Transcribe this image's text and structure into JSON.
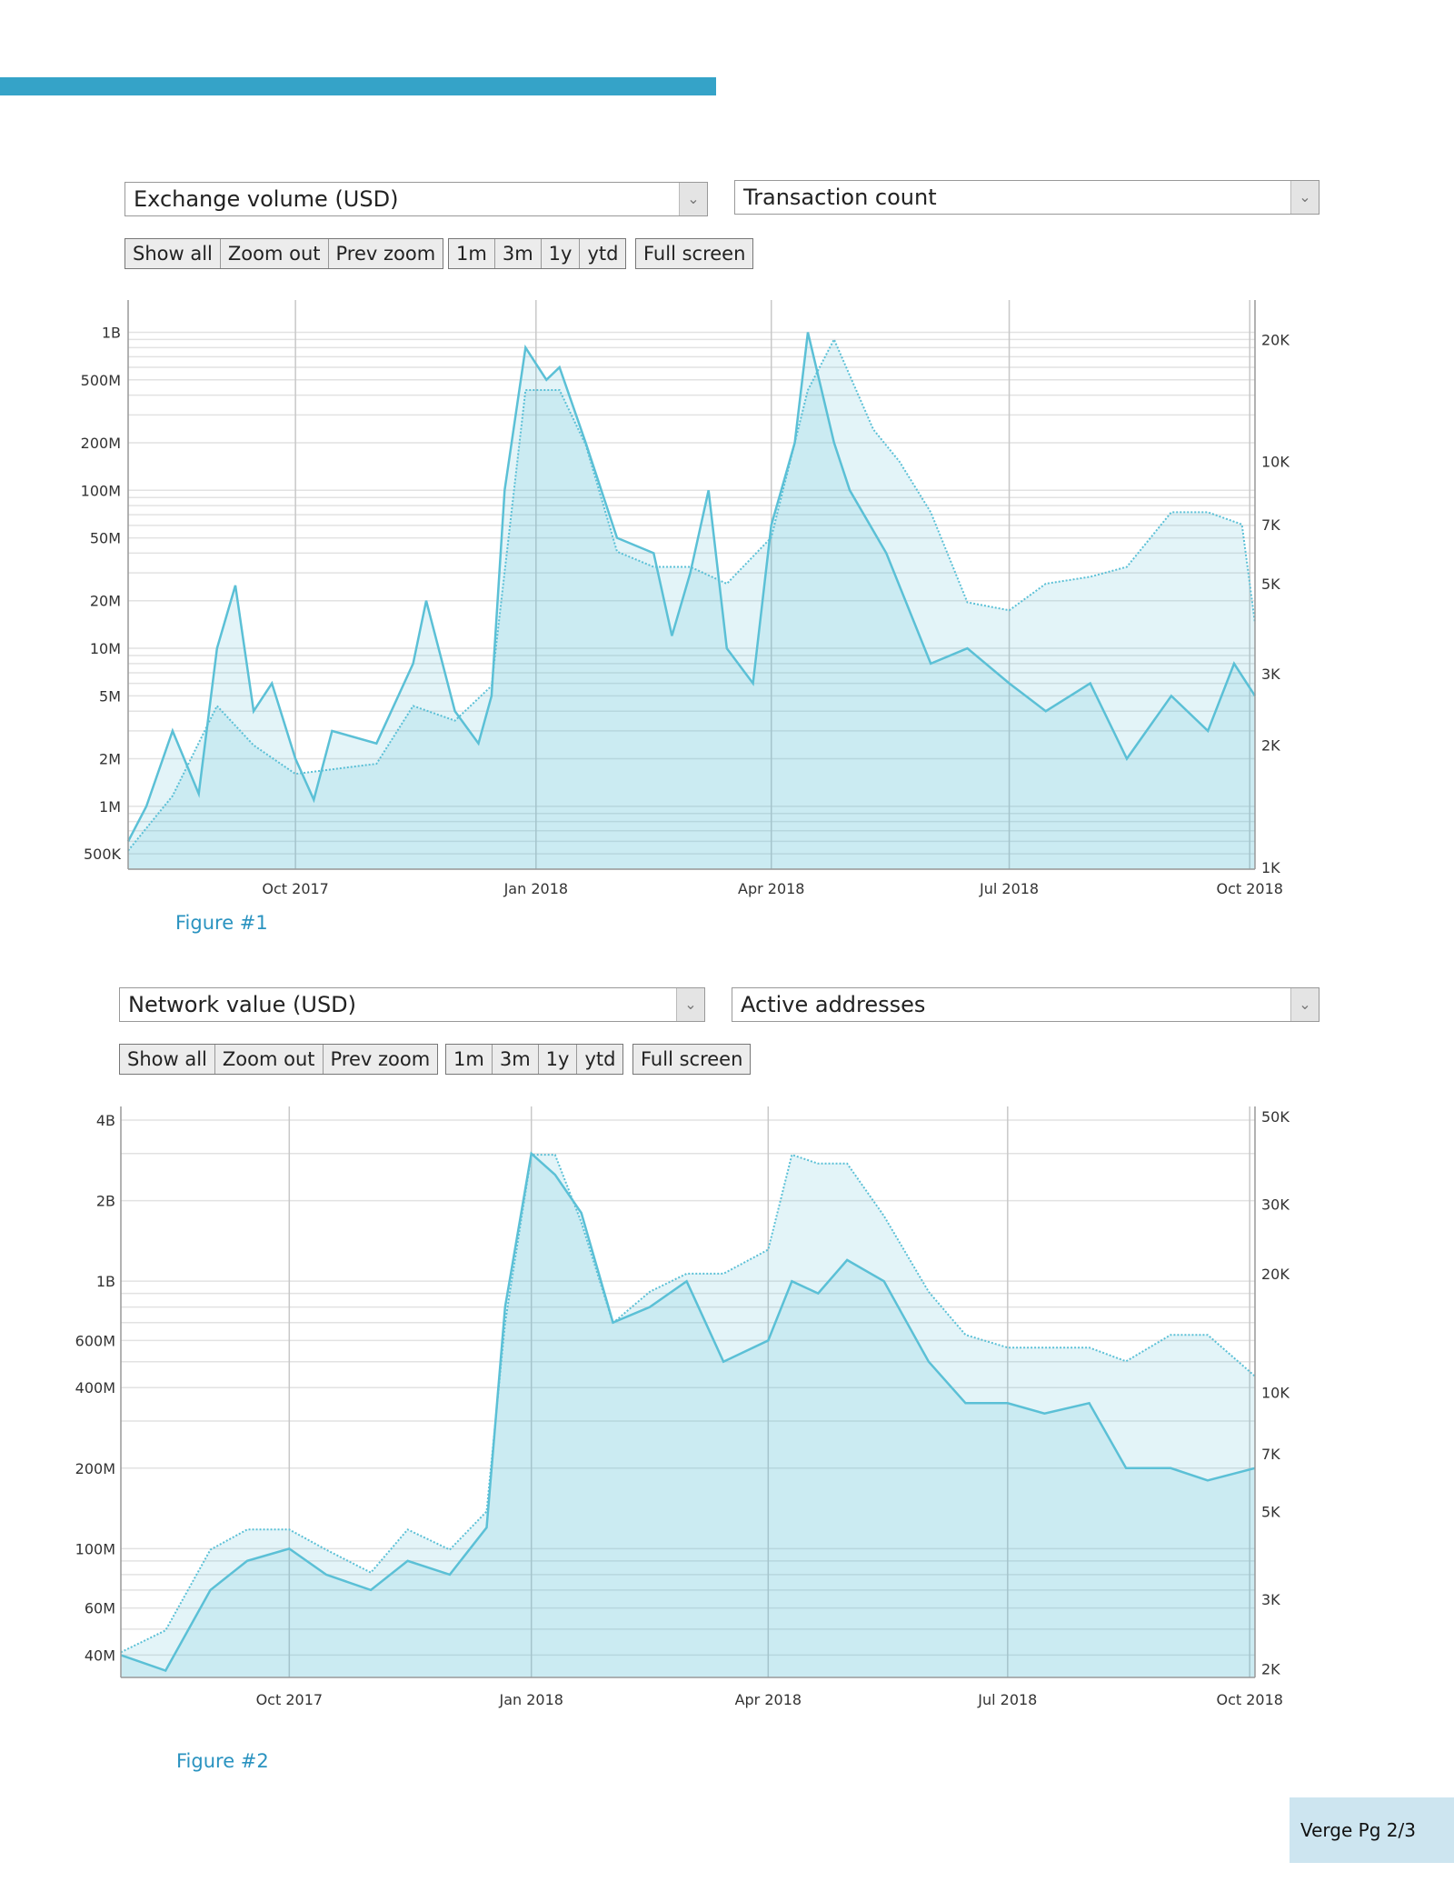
{
  "controls": [
    {
      "left_select": "Exchange volume (USD)",
      "right_select": "Transaction count"
    },
    {
      "left_select": "Network value (USD)",
      "right_select": "Active addresses"
    }
  ],
  "buttons": {
    "show_all": "Show all",
    "zoom_out": "Zoom out",
    "prev_zoom": "Prev zoom",
    "m1": "1m",
    "m3": "3m",
    "y1": "1y",
    "ytd": "ytd",
    "full_screen": "Full screen"
  },
  "figures": [
    "Figure #1",
    "Figure #2"
  ],
  "footer": "Verge Pg 2/3",
  "colors": {
    "accent": "#35a3c8",
    "series": "#5bc0d6",
    "fill": "#dff0f6"
  },
  "chart_data": [
    {
      "type": "line",
      "xrange": [
        "2017-07-29",
        "2018-10-03"
      ],
      "xticks": [
        {
          "date": "2017-10-01",
          "label": "Oct 2017"
        },
        {
          "date": "2018-01-01",
          "label": "Jan 2018"
        },
        {
          "date": "2018-04-01",
          "label": "Apr 2018"
        },
        {
          "date": "2018-07-01",
          "label": "Jul 2018"
        },
        {
          "date": "2018-10-01",
          "label": "Oct 2018"
        }
      ],
      "left_axis": {
        "scale": "log",
        "range": [
          400000,
          1600000000
        ],
        "ticks": [
          {
            "v": 500000,
            "label": "500K"
          },
          {
            "v": 1000000,
            "label": "1M"
          },
          {
            "v": 2000000,
            "label": "2M"
          },
          {
            "v": 5000000,
            "label": "5M"
          },
          {
            "v": 10000000,
            "label": "10M"
          },
          {
            "v": 20000000,
            "label": "20M"
          },
          {
            "v": 50000000,
            "label": "50M"
          },
          {
            "v": 100000000,
            "label": "100M"
          },
          {
            "v": 200000000,
            "label": "200M"
          },
          {
            "v": 500000000,
            "label": "500M"
          },
          {
            "v": 1000000000,
            "label": "1B"
          }
        ]
      },
      "right_axis": {
        "scale": "log",
        "range": [
          990,
          25000
        ],
        "ticks": [
          {
            "v": 1000,
            "label": "1K"
          },
          {
            "v": 2000,
            "label": "2K"
          },
          {
            "v": 3000,
            "label": "3K"
          },
          {
            "v": 5000,
            "label": "5K"
          },
          {
            "v": 7000,
            "label": "7K"
          },
          {
            "v": 10000,
            "label": "10K"
          },
          {
            "v": 20000,
            "label": "20K"
          }
        ]
      },
      "series": [
        {
          "name": "Exchange volume (USD)",
          "axis": "left",
          "style": "solid",
          "points": [
            [
              "2017-07-29",
              600000
            ],
            [
              "2017-08-05",
              1000000
            ],
            [
              "2017-08-15",
              3000000
            ],
            [
              "2017-08-25",
              1200000
            ],
            [
              "2017-09-01",
              10000000
            ],
            [
              "2017-09-08",
              25000000
            ],
            [
              "2017-09-15",
              4000000
            ],
            [
              "2017-09-22",
              6000000
            ],
            [
              "2017-10-01",
              2000000
            ],
            [
              "2017-10-08",
              1100000
            ],
            [
              "2017-10-15",
              3000000
            ],
            [
              "2017-11-01",
              2500000
            ],
            [
              "2017-11-15",
              8000000
            ],
            [
              "2017-11-20",
              20000000
            ],
            [
              "2017-12-01",
              4000000
            ],
            [
              "2017-12-10",
              2500000
            ],
            [
              "2017-12-15",
              5000000
            ],
            [
              "2017-12-20",
              100000000
            ],
            [
              "2017-12-28",
              800000000
            ],
            [
              "2018-01-05",
              500000000
            ],
            [
              "2018-01-10",
              600000000
            ],
            [
              "2018-01-20",
              200000000
            ],
            [
              "2018-02-01",
              50000000
            ],
            [
              "2018-02-15",
              40000000
            ],
            [
              "2018-02-22",
              12000000
            ],
            [
              "2018-03-01",
              30000000
            ],
            [
              "2018-03-08",
              100000000
            ],
            [
              "2018-03-15",
              10000000
            ],
            [
              "2018-03-25",
              6000000
            ],
            [
              "2018-04-01",
              60000000
            ],
            [
              "2018-04-10",
              200000000
            ],
            [
              "2018-04-15",
              1000000000
            ],
            [
              "2018-04-25",
              200000000
            ],
            [
              "2018-05-01",
              100000000
            ],
            [
              "2018-05-15",
              40000000
            ],
            [
              "2018-06-01",
              8000000
            ],
            [
              "2018-06-15",
              10000000
            ],
            [
              "2018-07-01",
              6000000
            ],
            [
              "2018-07-15",
              4000000
            ],
            [
              "2018-08-01",
              6000000
            ],
            [
              "2018-08-15",
              2000000
            ],
            [
              "2018-09-01",
              5000000
            ],
            [
              "2018-09-15",
              3000000
            ],
            [
              "2018-09-25",
              8000000
            ],
            [
              "2018-10-03",
              5000000
            ]
          ]
        },
        {
          "name": "Transaction count",
          "axis": "right",
          "style": "dotted",
          "points": [
            [
              "2017-07-29",
              1100
            ],
            [
              "2017-08-15",
              1500
            ],
            [
              "2017-09-01",
              2500
            ],
            [
              "2017-09-15",
              2000
            ],
            [
              "2017-10-01",
              1700
            ],
            [
              "2017-11-01",
              1800
            ],
            [
              "2017-11-15",
              2500
            ],
            [
              "2017-12-01",
              2300
            ],
            [
              "2017-12-15",
              2800
            ],
            [
              "2017-12-28",
              15000
            ],
            [
              "2018-01-10",
              15000
            ],
            [
              "2018-01-20",
              11000
            ],
            [
              "2018-02-01",
              6000
            ],
            [
              "2018-02-15",
              5500
            ],
            [
              "2018-03-01",
              5500
            ],
            [
              "2018-03-15",
              5000
            ],
            [
              "2018-04-01",
              6500
            ],
            [
              "2018-04-15",
              15000
            ],
            [
              "2018-04-25",
              20000
            ],
            [
              "2018-05-10",
              12000
            ],
            [
              "2018-05-20",
              10000
            ],
            [
              "2018-06-01",
              7500
            ],
            [
              "2018-06-15",
              4500
            ],
            [
              "2018-07-01",
              4300
            ],
            [
              "2018-07-15",
              5000
            ],
            [
              "2018-08-01",
              5200
            ],
            [
              "2018-08-15",
              5500
            ],
            [
              "2018-09-01",
              7500
            ],
            [
              "2018-09-15",
              7500
            ],
            [
              "2018-09-28",
              7000
            ],
            [
              "2018-10-03",
              4000
            ]
          ]
        }
      ]
    },
    {
      "type": "line",
      "xrange": [
        "2017-07-29",
        "2018-10-03"
      ],
      "xticks": [
        {
          "date": "2017-10-01",
          "label": "Oct 2017"
        },
        {
          "date": "2018-01-01",
          "label": "Jan 2018"
        },
        {
          "date": "2018-04-01",
          "label": "Apr 2018"
        },
        {
          "date": "2018-07-01",
          "label": "Jul 2018"
        },
        {
          "date": "2018-10-01",
          "label": "Oct 2018"
        }
      ],
      "left_axis": {
        "scale": "log",
        "range": [
          33000000,
          4500000000
        ],
        "ticks": [
          {
            "v": 40000000,
            "label": "40M"
          },
          {
            "v": 60000000,
            "label": "60M"
          },
          {
            "v": 100000000,
            "label": "100M"
          },
          {
            "v": 200000000,
            "label": "200M"
          },
          {
            "v": 400000000,
            "label": "400M"
          },
          {
            "v": 600000000,
            "label": "600M"
          },
          {
            "v": 1000000000,
            "label": "1B"
          },
          {
            "v": 2000000000,
            "label": "2B"
          },
          {
            "v": 4000000000,
            "label": "4B"
          }
        ]
      },
      "right_axis": {
        "scale": "log",
        "range": [
          1900,
          53000
        ],
        "ticks": [
          {
            "v": 2000,
            "label": "2K"
          },
          {
            "v": 3000,
            "label": "3K"
          },
          {
            "v": 5000,
            "label": "5K"
          },
          {
            "v": 7000,
            "label": "7K"
          },
          {
            "v": 10000,
            "label": "10K"
          },
          {
            "v": 20000,
            "label": "20K"
          },
          {
            "v": 30000,
            "label": "30K"
          },
          {
            "v": 50000,
            "label": "50K"
          }
        ]
      },
      "series": [
        {
          "name": "Network value (USD)",
          "axis": "left",
          "style": "solid",
          "points": [
            [
              "2017-07-29",
              40000000
            ],
            [
              "2017-08-15",
              35000000
            ],
            [
              "2017-09-01",
              70000000
            ],
            [
              "2017-09-15",
              90000000
            ],
            [
              "2017-10-01",
              100000000
            ],
            [
              "2017-10-15",
              80000000
            ],
            [
              "2017-11-01",
              70000000
            ],
            [
              "2017-11-15",
              90000000
            ],
            [
              "2017-12-01",
              80000000
            ],
            [
              "2017-12-15",
              120000000
            ],
            [
              "2017-12-22",
              800000000
            ],
            [
              "2018-01-01",
              3000000000
            ],
            [
              "2018-01-10",
              2500000000
            ],
            [
              "2018-01-20",
              1800000000
            ],
            [
              "2018-02-01",
              700000000
            ],
            [
              "2018-02-15",
              800000000
            ],
            [
              "2018-03-01",
              1000000000
            ],
            [
              "2018-03-15",
              500000000
            ],
            [
              "2018-04-01",
              600000000
            ],
            [
              "2018-04-10",
              1000000000
            ],
            [
              "2018-04-20",
              900000000
            ],
            [
              "2018-05-01",
              1200000000
            ],
            [
              "2018-05-15",
              1000000000
            ],
            [
              "2018-06-01",
              500000000
            ],
            [
              "2018-06-15",
              350000000
            ],
            [
              "2018-07-01",
              350000000
            ],
            [
              "2018-07-15",
              320000000
            ],
            [
              "2018-08-01",
              350000000
            ],
            [
              "2018-08-15",
              200000000
            ],
            [
              "2018-09-01",
              200000000
            ],
            [
              "2018-09-15",
              180000000
            ],
            [
              "2018-10-03",
              200000000
            ]
          ]
        },
        {
          "name": "Active addresses",
          "axis": "right",
          "style": "dotted",
          "points": [
            [
              "2017-07-29",
              2200
            ],
            [
              "2017-08-15",
              2500
            ],
            [
              "2017-09-01",
              4000
            ],
            [
              "2017-09-15",
              4500
            ],
            [
              "2017-10-01",
              4500
            ],
            [
              "2017-10-15",
              4000
            ],
            [
              "2017-11-01",
              3500
            ],
            [
              "2017-11-15",
              4500
            ],
            [
              "2017-12-01",
              4000
            ],
            [
              "2017-12-15",
              5000
            ],
            [
              "2017-12-22",
              15000
            ],
            [
              "2018-01-01",
              40000
            ],
            [
              "2018-01-10",
              40000
            ],
            [
              "2018-01-20",
              27000
            ],
            [
              "2018-02-01",
              15000
            ],
            [
              "2018-02-15",
              18000
            ],
            [
              "2018-03-01",
              20000
            ],
            [
              "2018-03-15",
              20000
            ],
            [
              "2018-04-01",
              23000
            ],
            [
              "2018-04-10",
              40000
            ],
            [
              "2018-04-20",
              38000
            ],
            [
              "2018-05-01",
              38000
            ],
            [
              "2018-05-15",
              28000
            ],
            [
              "2018-06-01",
              18000
            ],
            [
              "2018-06-15",
              14000
            ],
            [
              "2018-07-01",
              13000
            ],
            [
              "2018-07-15",
              13000
            ],
            [
              "2018-08-01",
              13000
            ],
            [
              "2018-08-15",
              12000
            ],
            [
              "2018-09-01",
              14000
            ],
            [
              "2018-09-15",
              14000
            ],
            [
              "2018-10-03",
              11000
            ]
          ]
        }
      ]
    }
  ]
}
